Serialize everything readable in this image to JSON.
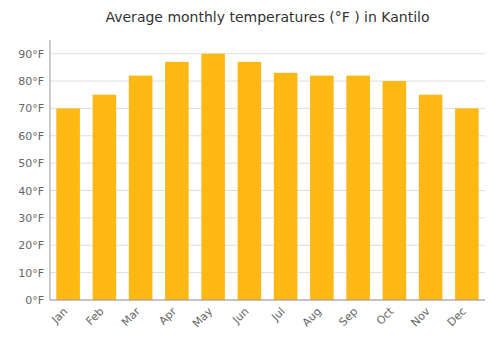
{
  "chart_data": {
    "type": "bar",
    "title": "Average monthly temperatures (°F ) in Kantilo",
    "categories": [
      "Jan",
      "Feb",
      "Mar",
      "Apr",
      "May",
      "Jun",
      "Jul",
      "Aug",
      "Sep",
      "Oct",
      "Nov",
      "Dec"
    ],
    "values": [
      70,
      75,
      82,
      87,
      90,
      87,
      83,
      82,
      82,
      80,
      75,
      70
    ],
    "color": "#FDB813",
    "ylim": [
      0,
      95
    ],
    "yticks": [
      {
        "value": 0,
        "label": "0°F"
      },
      {
        "value": 10,
        "label": "10°F"
      },
      {
        "value": 20,
        "label": "20°F"
      },
      {
        "value": 30,
        "label": "30°F"
      },
      {
        "value": 40,
        "label": "40°F"
      },
      {
        "value": 50,
        "label": "50°F"
      },
      {
        "value": 60,
        "label": "60°F"
      },
      {
        "value": 70,
        "label": "70°F"
      },
      {
        "value": 80,
        "label": "80°F"
      },
      {
        "value": 90,
        "label": "90°F"
      }
    ],
    "grid": true
  }
}
